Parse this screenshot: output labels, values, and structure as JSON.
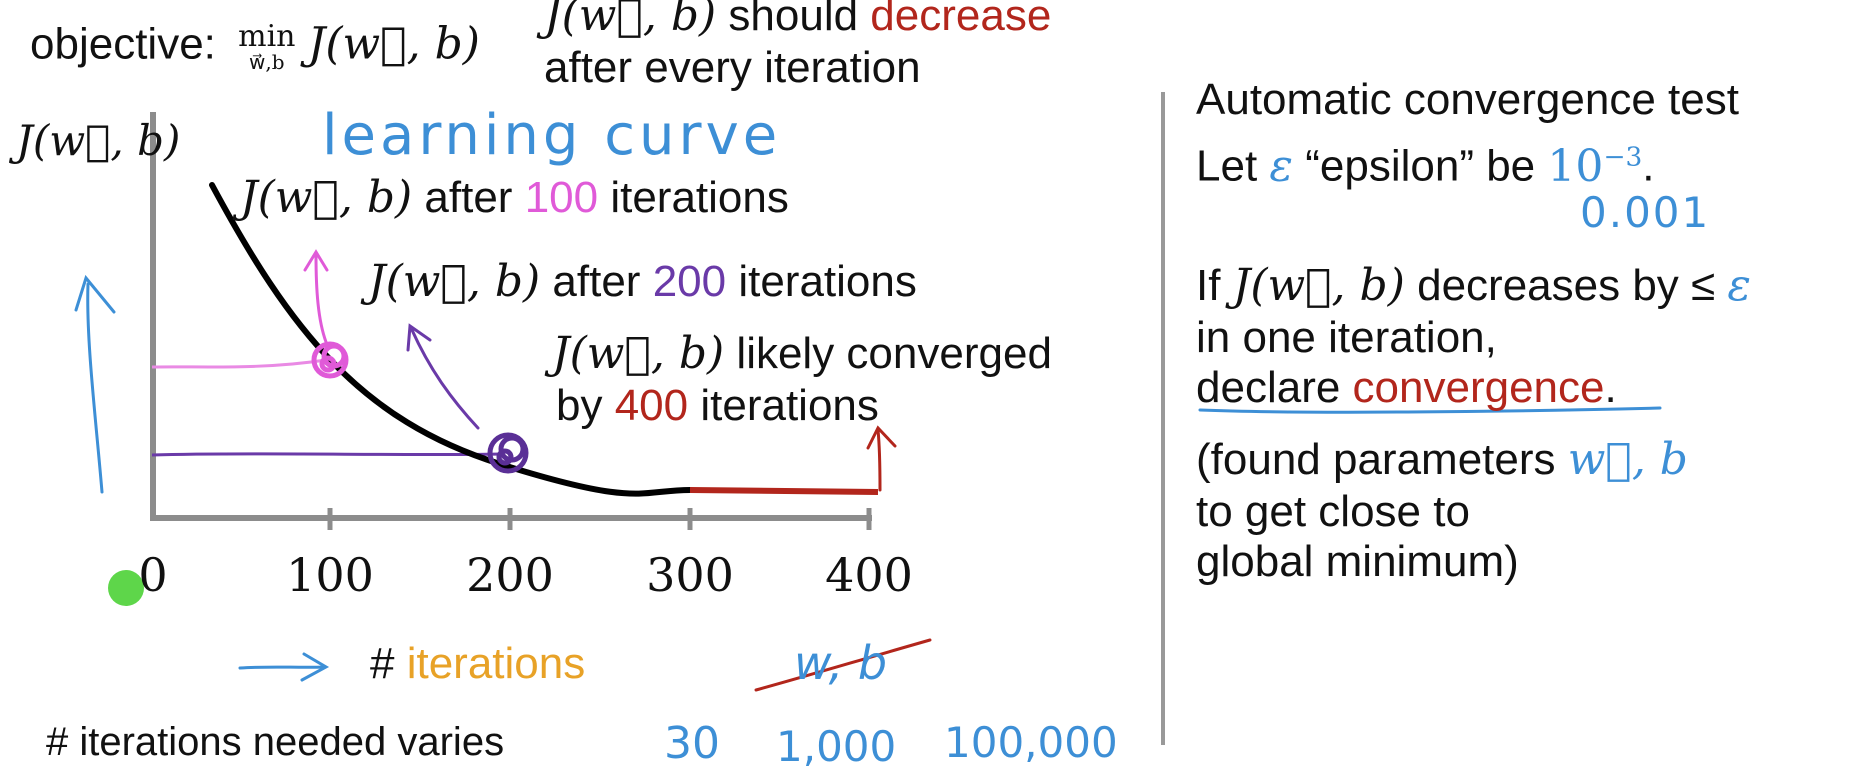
{
  "objective": {
    "label": "objective:",
    "min": "min",
    "min_sub": "w⃗,b",
    "expr": "J(w⃗, b)"
  },
  "top_note": {
    "line1_prefix": "J(w⃗, b)",
    "line1_mid": " should ",
    "line1_word": "decrease",
    "line2": "after every iteration"
  },
  "chart": {
    "y_axis_label": "J(w⃗, b)",
    "curve_title": "learning curve",
    "x_ticks": [
      "0",
      "100",
      "200",
      "300",
      "400"
    ],
    "x_label_prefix": "# ",
    "x_label_word": "iterations",
    "crossed_out": "w, b",
    "annotations": [
      {
        "expr": "J(w⃗, b)",
        "pre": " after ",
        "num": "100",
        "post": " iterations"
      },
      {
        "expr": "J(w⃗, b)",
        "pre": " after ",
        "num": "200",
        "post": " iterations"
      },
      {
        "expr": "J(w⃗, b)",
        "line1": " likely converged",
        "line2_pre": "by ",
        "line2_num": "400",
        "line2_post": " iterations"
      }
    ],
    "colors": {
      "curve": "#000000",
      "converged": "#b2261c",
      "iter100": "#e05ad8",
      "iter200": "#6a3aa8",
      "arrow": "#3d8fd6"
    }
  },
  "bottom_note": {
    "text": "# iterations needed varies",
    "values": [
      "30",
      "1,000",
      "100,000"
    ]
  },
  "right_panel": {
    "title": "Automatic convergence test",
    "let_prefix": "Let ",
    "epsilon": "ε",
    "let_mid": "  “epsilon” be ",
    "let_value": "10",
    "let_exp": "−3",
    "let_end": ".",
    "handwritten_value": "0.001",
    "if_prefix": "If ",
    "if_expr": "J(w⃗, b)",
    "if_suffix": " decreases by ≤ ",
    "line2": "in one iteration,",
    "declare_prefix": "declare ",
    "declare_word": "convergence",
    "declare_end": ".",
    "found_prefix": "(found parameters ",
    "found_params": "w⃗, b",
    "found_line2": "to get close to",
    "found_line3": "global minimum)"
  }
}
